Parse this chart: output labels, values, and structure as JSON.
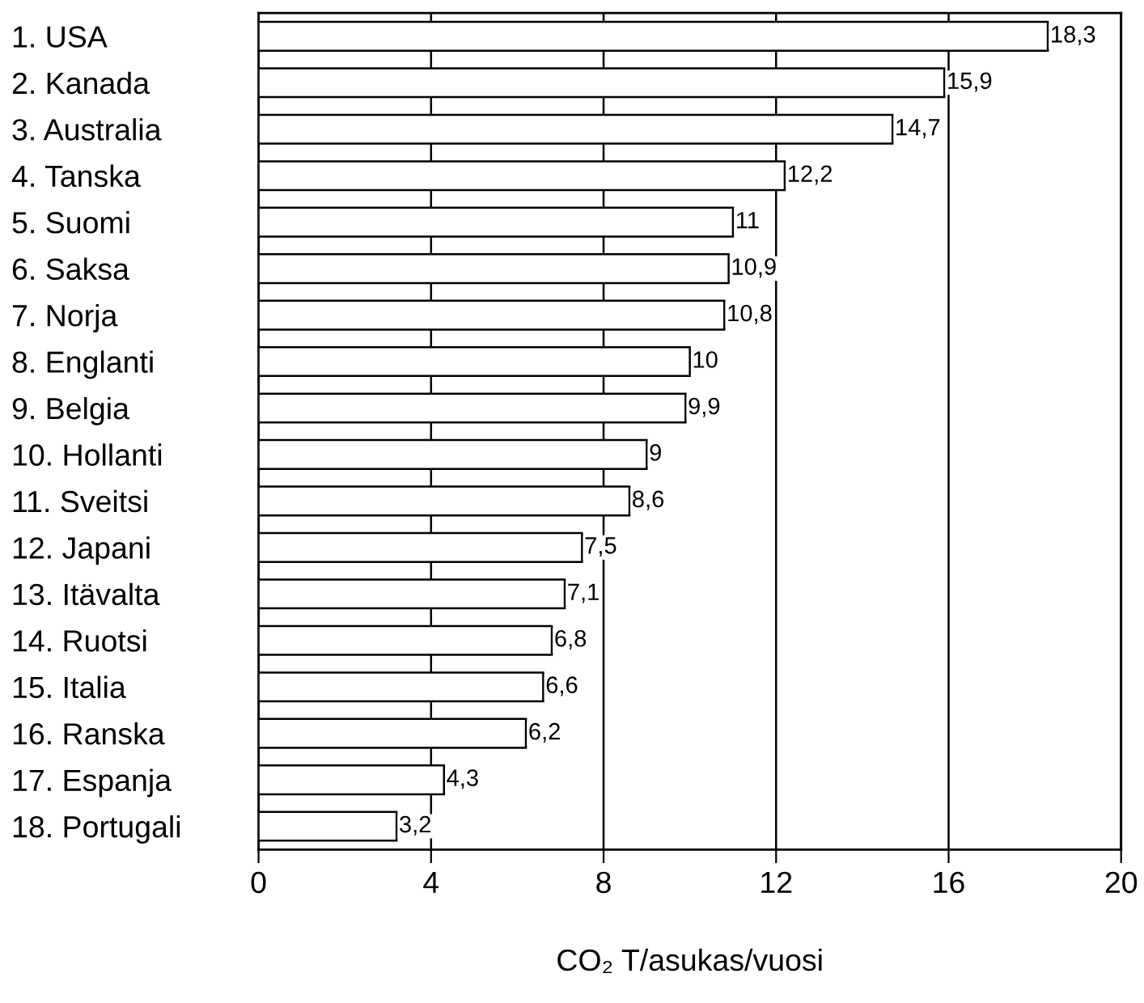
{
  "chart_data": {
    "type": "bar",
    "orientation": "horizontal",
    "xlabel": "CO₂ T/asukas/vuosi",
    "categories": [
      "1. USA",
      "2. Kanada",
      "3. Australia",
      "4. Tanska",
      "5. Suomi",
      "6. Saksa",
      "7. Norja",
      "8. Englanti",
      "9. Belgia",
      "10. Hollanti",
      "11. Sveitsi",
      "12. Japani",
      "13. Itävalta",
      "14. Ruotsi",
      "15. Italia",
      "16. Ranska",
      "17. Espanja",
      "18. Portugali"
    ],
    "values": [
      18.3,
      15.9,
      14.7,
      12.2,
      11,
      10.9,
      10.8,
      10,
      9.9,
      9,
      8.6,
      7.5,
      7.1,
      6.8,
      6.6,
      6.2,
      4.3,
      3.2
    ],
    "value_labels": [
      "18,3",
      "15,9",
      "14,7",
      "12,2",
      "11",
      "10,9",
      "10,8",
      "10",
      "9,9",
      "9",
      "8,6",
      "7,5",
      "7,1",
      "6,8",
      "6,6",
      "6,2",
      "4,3",
      "3,2"
    ],
    "color": "#ffffff",
    "xlim": [
      0,
      20
    ],
    "xticks": [
      0,
      4,
      8,
      12,
      16,
      20
    ],
    "grid": "x",
    "legend": false
  }
}
